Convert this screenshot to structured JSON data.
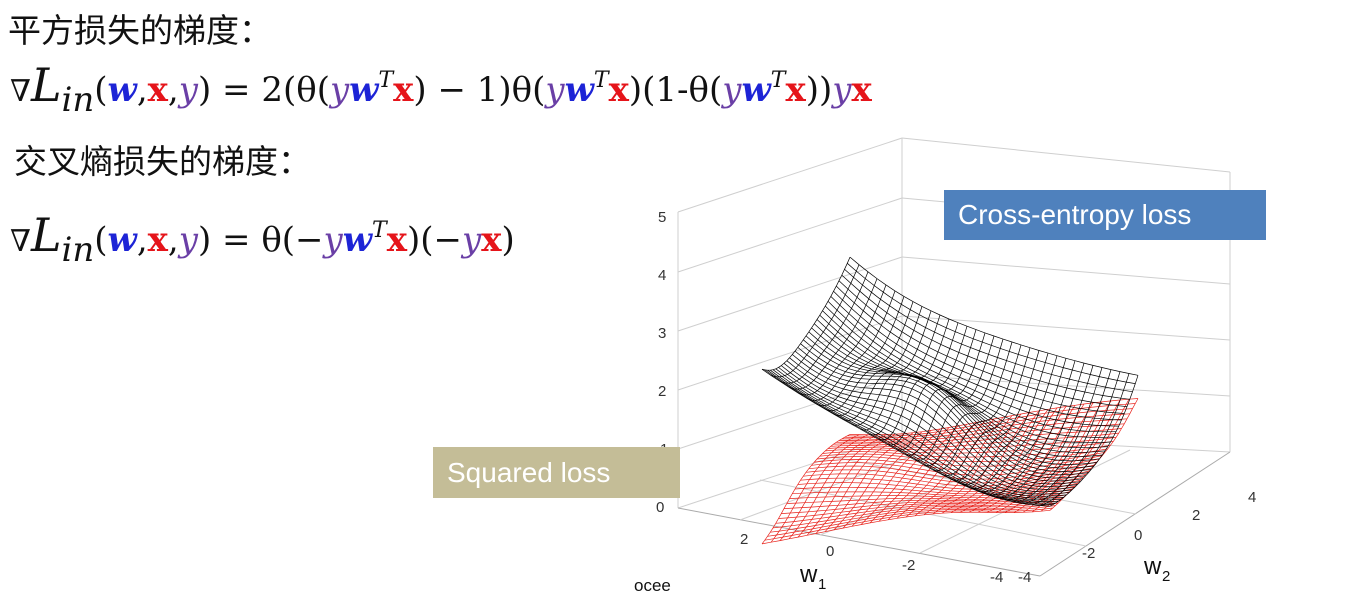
{
  "squared_heading": "平方损失的梯度：",
  "cross_entropy_heading": "交叉熵损失的梯度：",
  "formula1": {
    "nabla": "∇",
    "L": "L",
    "sub": "in",
    "open": "(",
    "w": "w",
    "comma1": ",",
    "x": "x",
    "comma2": ",",
    "y": "y",
    "close_eq": ") = 2(θ(",
    "y2": "y",
    "w2": "w",
    "T": "T",
    "x2": "x",
    "minus_one": ") − 1)θ(",
    "y3": "y",
    "w3": "w",
    "T2": "T",
    "x3": "x",
    "mid": ")(1-θ(",
    "y4": "y",
    "w4": "w",
    "T3": "T",
    "x4": "x",
    "tail": "))",
    "y5": "y",
    "x5": "x"
  },
  "formula2": {
    "nabla": "∇",
    "L": "L",
    "sub": "in",
    "open": "(",
    "w": "w",
    "comma1": ",",
    "x": "x",
    "comma2": ",",
    "y": "y",
    "close_eq": ") = θ(−",
    "y2": "y",
    "w2": "w",
    "T": "T",
    "x2": "x",
    "mid": ")(−",
    "y3": "y",
    "x3": "x",
    "tail": ")"
  },
  "plot": {
    "cross_entropy_label": "Cross-entropy loss",
    "squared_label": "Squared loss",
    "z_ticks": [
      "0",
      "1",
      "2",
      "3",
      "4",
      "5"
    ],
    "w1_ticks": [
      "2",
      "0",
      "-2",
      "-4"
    ],
    "w2_ticks": [
      "-4",
      "-2",
      "0",
      "2",
      "4"
    ],
    "w1_label": "w",
    "w1_sub": "1",
    "w2_label": "w",
    "w2_sub": "2",
    "cross_entropy_color": "#000000",
    "squared_color": "#e8231c",
    "cross_entropy_box_color": "#4f81bd",
    "squared_box_color": "#c4bd97"
  },
  "footer_note": "ocee"
}
